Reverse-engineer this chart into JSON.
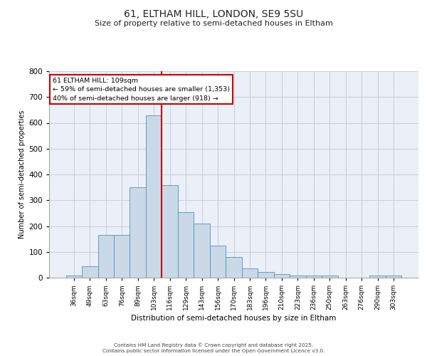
{
  "title": "61, ELTHAM HILL, LONDON, SE9 5SU",
  "subtitle": "Size of property relative to semi-detached houses in Eltham",
  "xlabel": "Distribution of semi-detached houses by size in Eltham",
  "ylabel": "Number of semi-detached properties",
  "bar_labels": [
    "36sqm",
    "49sqm",
    "63sqm",
    "76sqm",
    "89sqm",
    "103sqm",
    "116sqm",
    "129sqm",
    "143sqm",
    "156sqm",
    "170sqm",
    "183sqm",
    "196sqm",
    "210sqm",
    "223sqm",
    "236sqm",
    "250sqm",
    "263sqm",
    "276sqm",
    "290sqm",
    "303sqm"
  ],
  "bar_values": [
    8,
    45,
    165,
    165,
    350,
    628,
    360,
    255,
    210,
    125,
    80,
    37,
    23,
    15,
    8,
    8,
    8,
    0,
    0,
    8,
    8
  ],
  "bar_color": "#c9d9e8",
  "bar_edge_color": "#5b8db8",
  "vline_x_index": 6,
  "vline_color": "#cc0000",
  "annotation_title": "61 ELTHAM HILL: 109sqm",
  "annotation_line1": "← 59% of semi-detached houses are smaller (1,353)",
  "annotation_line2": "40% of semi-detached houses are larger (918) →",
  "annotation_box_color": "#cc0000",
  "ylim": [
    0,
    800
  ],
  "yticks": [
    0,
    100,
    200,
    300,
    400,
    500,
    600,
    700,
    800
  ],
  "grid_color": "#c5d0e0",
  "background_color": "#eaeff8",
  "footer_line1": "Contains HM Land Registry data © Crown copyright and database right 2025.",
  "footer_line2": "Contains public sector information licensed under the Open Government Licence v3.0."
}
